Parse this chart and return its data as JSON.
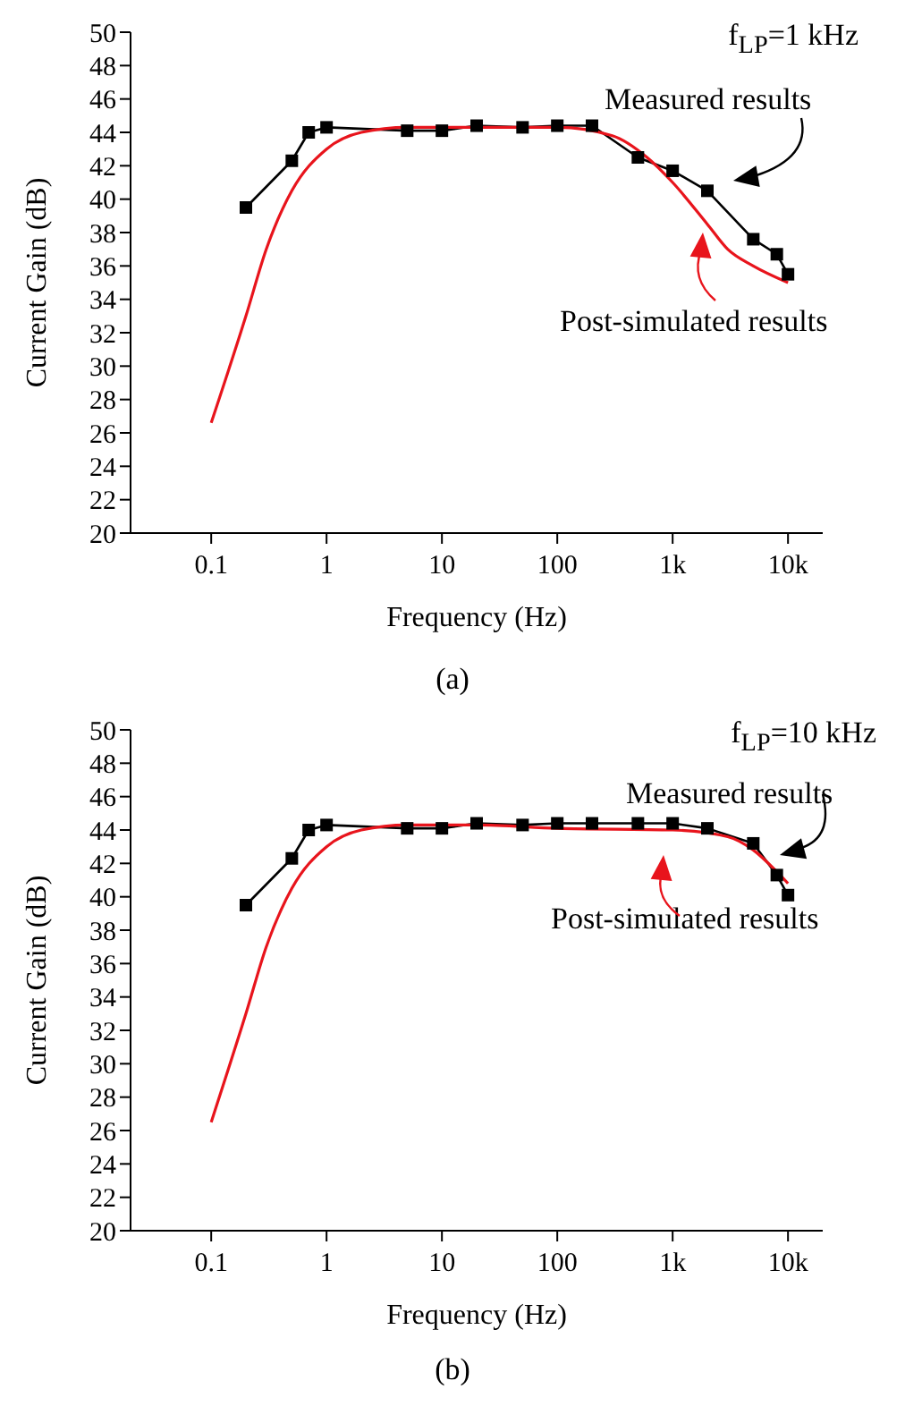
{
  "chart_data": [
    {
      "type": "line",
      "xlabel": "Frequency (Hz)",
      "ylabel": "Current Gain (dB)",
      "log": "x",
      "legend": "right",
      "annotations": [
        "f$_{LP}$=1 kHz",
        "(a)"
      ],
      "xlim": [
        0.02,
        20000
      ],
      "xticks": [
        {
          "value": 0.1,
          "label": "0.1"
        },
        {
          "value": 1,
          "label": "1"
        },
        {
          "value": 10,
          "label": "10"
        },
        {
          "value": 100,
          "label": "100"
        },
        {
          "value": 1000,
          "label": "1k"
        },
        {
          "value": 10000,
          "label": "10k"
        }
      ],
      "ylim": [
        20,
        50
      ],
      "yticks": [
        20,
        22,
        24,
        26,
        28,
        30,
        32,
        34,
        36,
        38,
        40,
        42,
        44,
        46,
        48,
        50
      ],
      "series": [
        {
          "name": "Measured results",
          "color": "#000000",
          "marker": "square",
          "x": [
            0.2,
            0.5,
            0.7,
            1,
            5,
            10,
            20,
            50,
            100,
            200,
            500,
            1000,
            2000,
            5000,
            8000,
            10000
          ],
          "values": [
            39.5,
            42.3,
            44,
            44.3,
            44.1,
            44.1,
            44.4,
            44.3,
            44.4,
            44.4,
            42.5,
            41.7,
            40.5,
            37.6,
            36.7,
            35.5
          ]
        },
        {
          "name": "Post-simulated results",
          "color": "#e8141c",
          "marker": "none",
          "x": [
            0.1,
            0.2,
            0.3,
            0.5,
            1,
            2,
            5,
            100,
            300,
            600,
            1000,
            2000,
            3000,
            5000,
            10000
          ],
          "values": [
            26.6,
            33,
            37,
            40.5,
            43,
            44,
            44.3,
            44.3,
            43.8,
            42.5,
            41,
            38.5,
            37,
            36,
            35
          ]
        }
      ]
    },
    {
      "type": "line",
      "xlabel": "Frequency (Hz)",
      "ylabel": "Current Gain (dB)",
      "log": "x",
      "legend": "right",
      "annotations": [
        "f$_{LP}$=10 kHz",
        "(b)"
      ],
      "xlim": [
        0.02,
        20000
      ],
      "xticks": [
        {
          "value": 0.1,
          "label": "0.1"
        },
        {
          "value": 1,
          "label": "1"
        },
        {
          "value": 10,
          "label": "10"
        },
        {
          "value": 100,
          "label": "100"
        },
        {
          "value": 1000,
          "label": "1k"
        },
        {
          "value": 10000,
          "label": "10k"
        }
      ],
      "ylim": [
        20,
        50
      ],
      "yticks": [
        20,
        22,
        24,
        26,
        28,
        30,
        32,
        34,
        36,
        38,
        40,
        42,
        44,
        46,
        48,
        50
      ],
      "series": [
        {
          "name": "Measured results",
          "color": "#000000",
          "marker": "square",
          "x": [
            0.2,
            0.5,
            0.7,
            1,
            5,
            10,
            20,
            50,
            100,
            200,
            500,
            1000,
            2000,
            5000,
            8000,
            10000
          ],
          "values": [
            39.5,
            42.3,
            44,
            44.3,
            44.1,
            44.1,
            44.4,
            44.3,
            44.4,
            44.4,
            44.4,
            44.4,
            44.1,
            43.2,
            41.3,
            40.1
          ]
        },
        {
          "name": "Post-simulated results",
          "color": "#e8141c",
          "marker": "none",
          "x": [
            0.1,
            0.2,
            0.3,
            0.5,
            1,
            2,
            5,
            20,
            100,
            1000,
            3000,
            5000,
            8000,
            10000
          ],
          "values": [
            26.5,
            33,
            37,
            40.5,
            43,
            44,
            44.3,
            44.3,
            44.1,
            44,
            43.6,
            42.8,
            41.5,
            40.8
          ]
        }
      ]
    }
  ]
}
